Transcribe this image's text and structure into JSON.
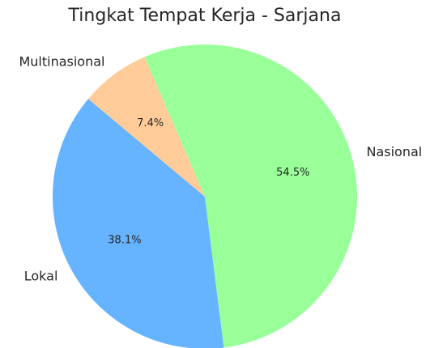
{
  "chart_data": {
    "type": "pie",
    "title": "Tingkat Tempat Kerja - Sarjana",
    "categories": [
      "Lokal",
      "Nasional",
      "Multinasional"
    ],
    "values": [
      38.1,
      54.5,
      7.4
    ],
    "value_labels": [
      "38.1%",
      "54.5%",
      "7.4%"
    ],
    "colors": [
      "#66b3ff",
      "#99ff99",
      "#ffcc99"
    ]
  }
}
